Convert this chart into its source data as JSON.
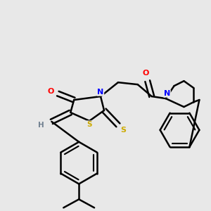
{
  "bg_color": "#e8e8e8",
  "atom_colors": {
    "O": "#ff0000",
    "N": "#0000ff",
    "S": "#ccaa00",
    "H": "#708090",
    "C": "#000000"
  },
  "bond_color": "#000000",
  "bond_width": 1.8,
  "fig_width": 3.0,
  "fig_height": 3.0,
  "dpi": 100
}
